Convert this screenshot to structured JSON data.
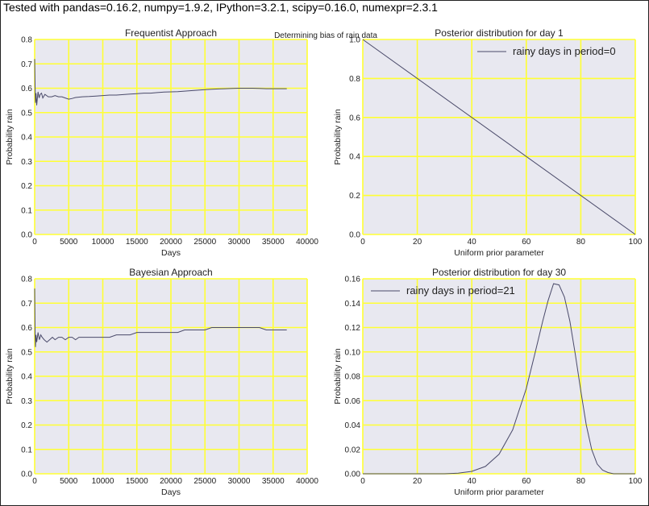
{
  "header": {
    "caption": "Tested with pandas=0.16.2, numpy=1.9.2, IPython=3.2.1, scipy=0.16.0, numexpr=2.3.1",
    "suptitle": "Determining bias of rain data"
  },
  "colors": {
    "plot_bg": "#e8e8f0",
    "grid": "#ffff33",
    "line": "#4a4a6a",
    "axis": "#777777"
  },
  "chart_data": [
    {
      "type": "line",
      "title": "Frequentist Approach",
      "xlabel": "Days",
      "ylabel": "Probability rain",
      "xlim": [
        0,
        40000
      ],
      "ylim": [
        0.0,
        0.8
      ],
      "xticks": [
        "0",
        "5000",
        "10000",
        "15000",
        "20000",
        "25000",
        "30000",
        "35000",
        "40000"
      ],
      "yticks": [
        "0.0",
        "0.1",
        "0.2",
        "0.3",
        "0.4",
        "0.5",
        "0.6",
        "0.7",
        "0.8"
      ],
      "grid": true,
      "series": [
        {
          "x": [
            0,
            60,
            120,
            200,
            300,
            400,
            500,
            650,
            800,
            1000,
            1200,
            1500,
            2000,
            2500,
            3000,
            3500,
            4000,
            4500,
            5000,
            5500,
            6000,
            7000,
            8000,
            9000,
            10000,
            11000,
            12000,
            13000,
            14000,
            15000,
            16000,
            17000,
            18000,
            19000,
            20000,
            21000,
            22000,
            23000,
            24000,
            25000,
            26000,
            27000,
            28000,
            29000,
            30000,
            31000,
            32000,
            33000,
            34000,
            35000,
            36000,
            37000
          ],
          "y": [
            0.72,
            0.61,
            0.54,
            0.58,
            0.53,
            0.56,
            0.585,
            0.56,
            0.575,
            0.58,
            0.56,
            0.575,
            0.565,
            0.565,
            0.57,
            0.565,
            0.565,
            0.56,
            0.555,
            0.558,
            0.562,
            0.565,
            0.566,
            0.568,
            0.57,
            0.572,
            0.572,
            0.574,
            0.576,
            0.578,
            0.58,
            0.58,
            0.582,
            0.584,
            0.585,
            0.586,
            0.588,
            0.59,
            0.592,
            0.594,
            0.596,
            0.597,
            0.598,
            0.599,
            0.6,
            0.6,
            0.6,
            0.599,
            0.598,
            0.598,
            0.598,
            0.598
          ]
        }
      ]
    },
    {
      "type": "line",
      "title": "Posterior distribution for day 1",
      "xlabel": "Uniform prior parameter",
      "ylabel": "Probability rain",
      "xlim": [
        0,
        100
      ],
      "ylim": [
        0.0,
        1.0
      ],
      "xticks": [
        "0",
        "20",
        "40",
        "60",
        "80",
        "100"
      ],
      "yticks": [
        "0.0",
        "0.2",
        "0.4",
        "0.6",
        "0.8",
        "1.0"
      ],
      "grid": true,
      "legend": "top-right",
      "series": [
        {
          "name": "rainy days in period=0",
          "x": [
            0,
            100
          ],
          "y": [
            1.0,
            0.0
          ]
        }
      ]
    },
    {
      "type": "line",
      "title": "Bayesian Approach",
      "xlabel": "Days",
      "ylabel": "Probability rain",
      "xlim": [
        0,
        40000
      ],
      "ylim": [
        0.0,
        0.8
      ],
      "xticks": [
        "0",
        "5000",
        "10000",
        "15000",
        "20000",
        "25000",
        "30000",
        "35000",
        "40000"
      ],
      "yticks": [
        "0.0",
        "0.1",
        "0.2",
        "0.3",
        "0.4",
        "0.5",
        "0.6",
        "0.7",
        "0.8"
      ],
      "grid": true,
      "series": [
        {
          "x": [
            0,
            60,
            120,
            200,
            300,
            400,
            500,
            700,
            900,
            1100,
            1400,
            1800,
            2200,
            2600,
            3000,
            3500,
            4000,
            4500,
            5000,
            5500,
            6000,
            6500,
            7000,
            8000,
            9000,
            10000,
            11000,
            12000,
            13000,
            14000,
            15000,
            16000,
            17000,
            18000,
            19000,
            20000,
            21000,
            22000,
            23000,
            24000,
            25000,
            26000,
            27000,
            28000,
            29000,
            30000,
            31000,
            32000,
            33000,
            34000,
            35000,
            36000,
            37000
          ],
          "y": [
            0.76,
            0.58,
            0.52,
            0.57,
            0.54,
            0.56,
            0.58,
            0.55,
            0.57,
            0.56,
            0.55,
            0.54,
            0.55,
            0.56,
            0.55,
            0.56,
            0.56,
            0.55,
            0.56,
            0.56,
            0.55,
            0.56,
            0.56,
            0.56,
            0.56,
            0.56,
            0.56,
            0.57,
            0.57,
            0.57,
            0.58,
            0.58,
            0.58,
            0.58,
            0.58,
            0.58,
            0.58,
            0.59,
            0.59,
            0.59,
            0.59,
            0.6,
            0.6,
            0.6,
            0.6,
            0.6,
            0.6,
            0.6,
            0.6,
            0.59,
            0.59,
            0.59,
            0.59
          ]
        }
      ]
    },
    {
      "type": "line",
      "title": "Posterior distribution for day 30",
      "xlabel": "Uniform prior parameter",
      "ylabel": "Probability rain",
      "xlim": [
        0,
        100
      ],
      "ylim": [
        0.0,
        0.16
      ],
      "xticks": [
        "0",
        "20",
        "40",
        "60",
        "80",
        "100"
      ],
      "yticks": [
        "0.00",
        "0.02",
        "0.04",
        "0.06",
        "0.08",
        "0.10",
        "0.12",
        "0.14",
        "0.16"
      ],
      "grid": true,
      "legend": "top-left",
      "series": [
        {
          "name": "rainy days in period=21",
          "x": [
            0,
            30,
            35,
            40,
            45,
            50,
            55,
            60,
            63,
            66,
            68,
            70,
            72,
            74,
            76,
            78,
            80,
            82,
            84,
            86,
            88,
            90,
            92,
            95,
            100
          ],
          "y": [
            0.0,
            0.0,
            0.0005,
            0.002,
            0.006,
            0.016,
            0.036,
            0.07,
            0.097,
            0.125,
            0.142,
            0.156,
            0.155,
            0.145,
            0.125,
            0.098,
            0.068,
            0.04,
            0.02,
            0.008,
            0.003,
            0.001,
            0.0,
            0.0,
            0.0
          ]
        }
      ]
    }
  ]
}
